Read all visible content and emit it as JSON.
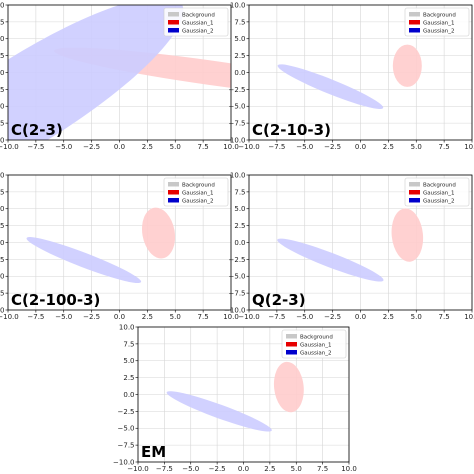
{
  "chart_data": [
    {
      "type": "scatter",
      "panel_label": "C(2-3)",
      "xlim": [
        -10,
        10
      ],
      "ylim": [
        -10,
        10
      ],
      "x_ticks": [
        "−10.0",
        "−7.5",
        "−5.0",
        "−2.5",
        "0.0",
        "2.5",
        "5.0",
        "7.5",
        "10.0"
      ],
      "y_ticks": [
        "−10.0",
        "−7.5",
        "−5.0",
        "−2.5",
        "0.0",
        "2.5",
        "5.0",
        "7.5",
        "10.0"
      ],
      "grid": true,
      "legend_position": "top-right",
      "series": [
        {
          "name": "Background",
          "color": "#c8c8c8"
        },
        {
          "name": "Gaussian_1",
          "color": "#e60000"
        },
        {
          "name": "Gaussian_2",
          "color": "#0000cc"
        }
      ],
      "ellipses": [
        {
          "series": "Gaussian_1",
          "center": [
            8.0,
            0.0
          ],
          "width": 2.2,
          "height": 28,
          "angle": 82
        },
        {
          "series": "Gaussian_2",
          "center": [
            -8.0,
            -3.8
          ],
          "width": 8.0,
          "height": 32,
          "angle": -58
        }
      ]
    },
    {
      "type": "scatter",
      "panel_label": "C(2-10-3)",
      "xlim": [
        -10,
        10
      ],
      "ylim": [
        -10,
        10
      ],
      "x_ticks": [
        "−10.0",
        "−7.5",
        "−5.0",
        "−2.5",
        "0.0",
        "2.5",
        "5.0",
        "7.5",
        "10.0"
      ],
      "y_ticks": [
        "−10.0",
        "−7.5",
        "−5.0",
        "−2.5",
        "0.0",
        "2.5",
        "5.0",
        "7.5",
        "10.0"
      ],
      "grid": true,
      "legend_position": "top-right",
      "series": [
        {
          "name": "Background",
          "color": "#c8c8c8"
        },
        {
          "name": "Gaussian_1",
          "color": "#e60000"
        },
        {
          "name": "Gaussian_2",
          "color": "#0000cc"
        }
      ],
      "ellipses": [
        {
          "series": "Gaussian_1",
          "center": [
            4.2,
            1.0
          ],
          "width": 2.6,
          "height": 3.8,
          "angle": 0
        },
        {
          "series": "Gaussian_2",
          "center": [
            -2.7,
            -2.1
          ],
          "width": 10.2,
          "height": 1.3,
          "angle": -22
        }
      ]
    },
    {
      "type": "scatter",
      "panel_label": "C(2-100-3)",
      "xlim": [
        -10,
        10
      ],
      "ylim": [
        -10,
        10
      ],
      "x_ticks": [
        "−10.0",
        "−7.5",
        "−5.0",
        "−2.5",
        "0.0",
        "2.5",
        "5.0",
        "7.5",
        "10.0"
      ],
      "y_ticks": [
        "−10.0",
        "−7.5",
        "−5.0",
        "−2.5",
        "0.0",
        "2.5",
        "5.0",
        "7.5",
        "10.0"
      ],
      "grid": true,
      "legend_position": "top-right",
      "series": [
        {
          "name": "Background",
          "color": "#c8c8c8"
        },
        {
          "name": "Gaussian_1",
          "color": "#e60000"
        },
        {
          "name": "Gaussian_2",
          "color": "#0000cc"
        }
      ],
      "ellipses": [
        {
          "series": "Gaussian_1",
          "center": [
            3.5,
            1.4
          ],
          "width": 2.9,
          "height": 4.6,
          "angle": 10
        },
        {
          "series": "Gaussian_2",
          "center": [
            -3.2,
            -2.6
          ],
          "width": 11.0,
          "height": 1.3,
          "angle": -21
        }
      ]
    },
    {
      "type": "scatter",
      "panel_label": "Q(2-3)",
      "xlim": [
        -10,
        10
      ],
      "ylim": [
        -10,
        10
      ],
      "x_ticks": [
        "−10.0",
        "−7.5",
        "−5.0",
        "−2.5",
        "0.0",
        "2.5",
        "5.0",
        "7.5",
        "10.0"
      ],
      "y_ticks": [
        "−10.0",
        "−7.5",
        "−5.0",
        "−2.5",
        "0.0",
        "2.5",
        "5.0",
        "7.5",
        "10.0"
      ],
      "grid": true,
      "legend_position": "top-right",
      "series": [
        {
          "name": "Background",
          "color": "#c8c8c8"
        },
        {
          "name": "Gaussian_1",
          "color": "#e60000"
        },
        {
          "name": "Gaussian_2",
          "color": "#0000cc"
        }
      ],
      "ellipses": [
        {
          "series": "Gaussian_1",
          "center": [
            4.2,
            1.1
          ],
          "width": 2.8,
          "height": 4.8,
          "angle": 6
        },
        {
          "series": "Gaussian_2",
          "center": [
            -2.7,
            -2.6
          ],
          "width": 10.2,
          "height": 1.3,
          "angle": -21
        }
      ]
    },
    {
      "type": "scatter",
      "panel_label": "EM",
      "xlim": [
        -10,
        10
      ],
      "ylim": [
        -10,
        10
      ],
      "x_ticks": [
        "−10.0",
        "−7.5",
        "−5.0",
        "−2.5",
        "0.0",
        "2.5",
        "5.0",
        "7.5",
        "10.0"
      ],
      "y_ticks": [
        "−10.0",
        "−7.5",
        "−5.0",
        "−2.5",
        "0.0",
        "2.5",
        "5.0",
        "7.5",
        "10.0"
      ],
      "grid": true,
      "legend_position": "top-right",
      "series": [
        {
          "name": "Background",
          "color": "#c8c8c8"
        },
        {
          "name": "Gaussian_1",
          "color": "#e60000"
        },
        {
          "name": "Gaussian_2",
          "color": "#0000cc"
        }
      ],
      "ellipses": [
        {
          "series": "Gaussian_1",
          "center": [
            4.3,
            1.1
          ],
          "width": 2.8,
          "height": 4.8,
          "angle": 6
        },
        {
          "series": "Gaussian_2",
          "center": [
            -2.3,
            -2.5
          ],
          "width": 10.6,
          "height": 1.3,
          "angle": -20
        }
      ]
    }
  ]
}
